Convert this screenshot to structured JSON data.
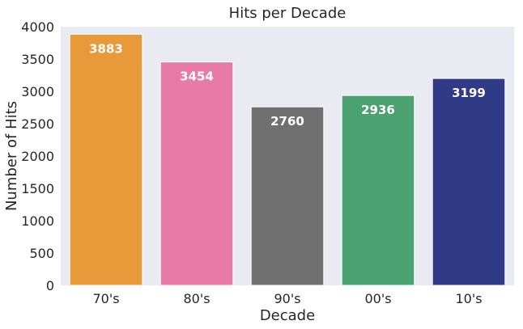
{
  "chart_data": {
    "type": "bar",
    "title": "Hits per Decade",
    "xlabel": "Decade",
    "ylabel": "Number of Hits",
    "categories": [
      "70's",
      "80's",
      "90's",
      "00's",
      "10's"
    ],
    "values": [
      3883,
      3454,
      2760,
      2936,
      3199
    ],
    "data_labels": [
      "3883",
      "3454",
      "2760",
      "2936",
      "3199"
    ],
    "colors": [
      "#E8993A",
      "#E87BA5",
      "#707070",
      "#4CA170",
      "#313A86"
    ],
    "ylim": [
      0,
      4000
    ],
    "yticks": [
      0,
      500,
      1000,
      1500,
      2000,
      2500,
      3000,
      3500,
      4000
    ],
    "ytick_labels": [
      "0",
      "500",
      "1000",
      "1500",
      "2000",
      "2500",
      "3000",
      "3500",
      "4000"
    ],
    "grid": false,
    "background": "#EAEAF2"
  }
}
